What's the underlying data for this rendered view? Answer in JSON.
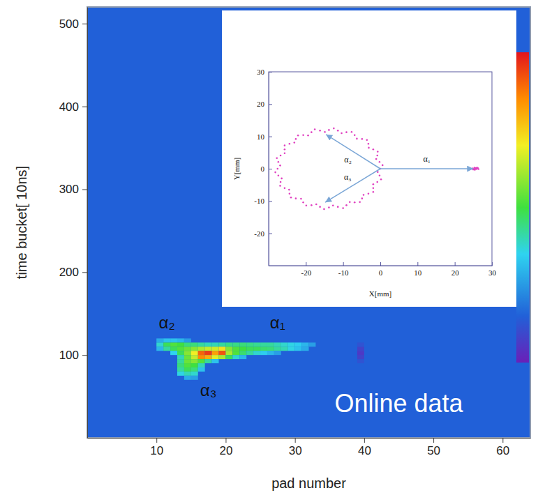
{
  "chart_data": [
    {
      "type": "heatmap",
      "x_label": "pad number",
      "y_label": "time bucket[ 10ns]",
      "xlim": [
        0,
        64
      ],
      "xticks": [
        10,
        20,
        30,
        40,
        50,
        60
      ],
      "ylim": [
        0,
        520
      ],
      "yticks": [
        100,
        200,
        300,
        400,
        500
      ],
      "bin_width": 1,
      "bin_height": 5,
      "baseline": 15,
      "colorbar": {
        "range": [
          0,
          100
        ]
      },
      "cells": [
        [
          10,
          115,
          28
        ],
        [
          11,
          115,
          32
        ],
        [
          12,
          115,
          32
        ],
        [
          13,
          115,
          30
        ],
        [
          14,
          115,
          25
        ],
        [
          10,
          110,
          38
        ],
        [
          11,
          110,
          48
        ],
        [
          12,
          110,
          52
        ],
        [
          13,
          110,
          50
        ],
        [
          14,
          110,
          45
        ],
        [
          15,
          110,
          45
        ],
        [
          16,
          110,
          42
        ],
        [
          17,
          110,
          40
        ],
        [
          18,
          110,
          40
        ],
        [
          19,
          110,
          42
        ],
        [
          20,
          110,
          44
        ],
        [
          21,
          110,
          44
        ],
        [
          22,
          110,
          45
        ],
        [
          23,
          110,
          44
        ],
        [
          24,
          110,
          43
        ],
        [
          25,
          110,
          42
        ],
        [
          26,
          110,
          42
        ],
        [
          27,
          110,
          40
        ],
        [
          28,
          110,
          38
        ],
        [
          29,
          110,
          36
        ],
        [
          30,
          110,
          34
        ],
        [
          31,
          110,
          30
        ],
        [
          32,
          110,
          26
        ],
        [
          10,
          105,
          30
        ],
        [
          11,
          105,
          42
        ],
        [
          12,
          105,
          48
        ],
        [
          13,
          105,
          52
        ],
        [
          14,
          105,
          55
        ],
        [
          15,
          105,
          58
        ],
        [
          16,
          105,
          62
        ],
        [
          17,
          105,
          65
        ],
        [
          18,
          105,
          66
        ],
        [
          19,
          105,
          72
        ],
        [
          20,
          105,
          58
        ],
        [
          21,
          105,
          52
        ],
        [
          22,
          105,
          50
        ],
        [
          23,
          105,
          48
        ],
        [
          24,
          105,
          48
        ],
        [
          25,
          105,
          46
        ],
        [
          26,
          105,
          45
        ],
        [
          27,
          105,
          42
        ],
        [
          28,
          105,
          40
        ],
        [
          29,
          105,
          36
        ],
        [
          30,
          105,
          32
        ],
        [
          31,
          105,
          28
        ],
        [
          12,
          100,
          35
        ],
        [
          13,
          100,
          48
        ],
        [
          14,
          100,
          58
        ],
        [
          15,
          100,
          70
        ],
        [
          16,
          100,
          90
        ],
        [
          17,
          100,
          95
        ],
        [
          18,
          100,
          82
        ],
        [
          19,
          100,
          92
        ],
        [
          20,
          100,
          62
        ],
        [
          21,
          100,
          52
        ],
        [
          22,
          100,
          46
        ],
        [
          23,
          100,
          42
        ],
        [
          24,
          100,
          38
        ],
        [
          25,
          100,
          34
        ],
        [
          26,
          100,
          30
        ],
        [
          27,
          100,
          26
        ],
        [
          13,
          95,
          40
        ],
        [
          14,
          95,
          55
        ],
        [
          15,
          95,
          65
        ],
        [
          16,
          95,
          85
        ],
        [
          17,
          95,
          80
        ],
        [
          18,
          95,
          68
        ],
        [
          19,
          95,
          62
        ],
        [
          20,
          95,
          48
        ],
        [
          21,
          95,
          38
        ],
        [
          22,
          95,
          30
        ],
        [
          13,
          90,
          42
        ],
        [
          14,
          90,
          55
        ],
        [
          15,
          90,
          58
        ],
        [
          16,
          90,
          52
        ],
        [
          17,
          90,
          42
        ],
        [
          18,
          90,
          32
        ],
        [
          13,
          85,
          45
        ],
        [
          14,
          85,
          52
        ],
        [
          15,
          85,
          50
        ],
        [
          16,
          85,
          40
        ],
        [
          13,
          80,
          42
        ],
        [
          14,
          80,
          48
        ],
        [
          15,
          80,
          45
        ],
        [
          16,
          80,
          32
        ],
        [
          13,
          75,
          36
        ],
        [
          14,
          75,
          40
        ],
        [
          15,
          75,
          38
        ],
        [
          14,
          70,
          28
        ],
        [
          15,
          70,
          26
        ],
        [
          39,
          90,
          12
        ],
        [
          39,
          95,
          8
        ],
        [
          39,
          100,
          6
        ],
        [
          39,
          105,
          8
        ],
        [
          39,
          110,
          12
        ]
      ],
      "annotations": [
        {
          "text": "α₂",
          "x": 11.5,
          "y": 139,
          "color": "#111111"
        },
        {
          "text": "α₁",
          "x": 27.5,
          "y": 139,
          "color": "#111111"
        },
        {
          "text": "α₃",
          "x": 17.5,
          "y": 58,
          "color": "#111111"
        },
        {
          "text": "Online data",
          "x": 45,
          "y": 42,
          "color": "#ffffff"
        }
      ]
    },
    {
      "type": "scatter",
      "x_label": "X[mm]",
      "y_label": "Y[mm]",
      "xlim": [
        -30,
        30
      ],
      "xticks": [
        -20,
        -10,
        0,
        10,
        20,
        30
      ],
      "ylim": [
        -30,
        30
      ],
      "yticks": [
        -20,
        -10,
        0,
        10,
        20,
        30
      ],
      "color": "#e040c0",
      "marker": "dot",
      "x": [
        0.0,
        -0.2,
        -0.8,
        -1.9,
        -3.2,
        -4.9,
        -6.9,
        -9.1,
        -11.4,
        -13.8,
        -16.2,
        -18.5,
        -20.7,
        -22.7,
        -24.4,
        -25.7,
        -26.8,
        -27.4,
        -27.6,
        -27.4,
        -26.8,
        -25.7,
        -24.4,
        -22.7,
        -20.7,
        -18.5,
        -16.2,
        -13.8,
        -11.4,
        -9.1,
        -6.9,
        -4.9,
        -3.2,
        -1.9,
        -0.8,
        -0.2,
        0.6,
        -1.1,
        -0.7,
        -3.1,
        -3.6,
        -6.3,
        -7.7,
        -10.4,
        -12.5,
        -14.9,
        -17.6,
        -19.4,
        -22.1,
        -23.1,
        -25.7,
        -25.7,
        -27.8,
        -26.9,
        -28.2,
        -26.5,
        -26.9,
        -24.5,
        -24.0,
        -21.3,
        -19.9,
        -17.2,
        -15.1,
        -12.7,
        -10.0,
        -8.2,
        -5.5,
        -4.5,
        -1.9,
        -1.9,
        0.2,
        -0.7,
        24.8,
        25.1,
        25.3,
        25.6,
        25.9,
        26.2,
        25.4,
        26.0,
        24.9,
        26.4,
        25.7,
        25.2
      ],
      "y": [
        0.0,
        2.1,
        4.1,
        6.0,
        7.7,
        9.2,
        10.4,
        11.3,
        11.8,
        12.0,
        11.8,
        11.3,
        10.4,
        9.2,
        7.7,
        6.0,
        4.1,
        2.1,
        0.0,
        -2.1,
        -4.1,
        -6.0,
        -7.7,
        -9.2,
        -10.4,
        -11.3,
        -11.8,
        -12.0,
        -11.8,
        -11.3,
        -10.4,
        -9.2,
        -7.7,
        -6.0,
        -4.1,
        -2.1,
        1.1,
        3.0,
        5.3,
        6.5,
        8.9,
        9.3,
        11.4,
        11.0,
        12.5,
        11.4,
        12.2,
        10.3,
        10.3,
        8.1,
        7.2,
        4.8,
        3.3,
        1.0,
        -1.1,
        -3.0,
        -5.3,
        -6.5,
        -8.9,
        -9.3,
        -11.4,
        -11.0,
        -12.5,
        -11.4,
        -12.2,
        -10.3,
        -10.3,
        -8.1,
        -7.2,
        -4.8,
        -3.3,
        -1.0,
        0.1,
        -0.2,
        0.3,
        0.0,
        -0.1,
        0.2,
        -0.3,
        0.3,
        -0.2,
        -0.1,
        0.2,
        0.0
      ],
      "arrows": [
        {
          "label": "α₁",
          "x": [
            0,
            25
          ],
          "y": [
            0,
            0
          ]
        },
        {
          "label": "α₂",
          "x": [
            0,
            -14.6
          ],
          "y": [
            0,
            10.6
          ]
        },
        {
          "label": "α₃",
          "x": [
            0,
            -14.8
          ],
          "y": [
            0,
            -10.4
          ]
        }
      ]
    }
  ]
}
